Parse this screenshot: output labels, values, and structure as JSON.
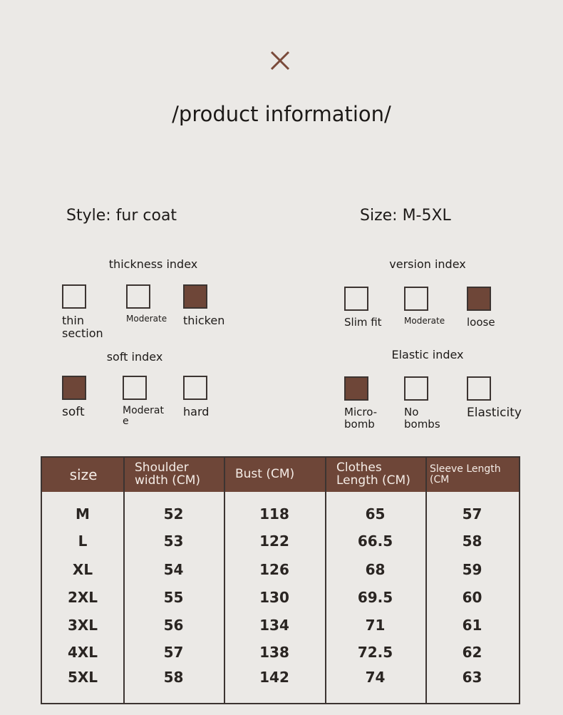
{
  "header": {
    "title": "/product information/"
  },
  "summary": {
    "style": "Style: fur coat",
    "size": "Size: M-5XL"
  },
  "indices": [
    {
      "title": "thickness index",
      "options": [
        {
          "label": "thin section",
          "checked": false
        },
        {
          "label": "Moderate",
          "checked": false
        },
        {
          "label": "thicken",
          "checked": true
        }
      ]
    },
    {
      "title": "version index",
      "options": [
        {
          "label": "Slim fit",
          "checked": false
        },
        {
          "label": "Moderate",
          "checked": false
        },
        {
          "label": "loose",
          "checked": true
        }
      ]
    },
    {
      "title": "soft index",
      "options": [
        {
          "label": "soft",
          "checked": true
        },
        {
          "label": "Moderate",
          "checked": false
        },
        {
          "label": "hard",
          "checked": false
        }
      ]
    },
    {
      "title": "Elastic index",
      "options": [
        {
          "label": "Micro-bomb",
          "checked": true
        },
        {
          "label": "No bombs",
          "checked": false
        },
        {
          "label": "Elasticity",
          "checked": false
        }
      ]
    }
  ],
  "table": {
    "header": [
      "size",
      "Shoulder width (CM)",
      "Bust (CM)",
      "Clothes Length (CM)",
      "Sleeve Length (CM"
    ],
    "rows": [
      [
        "M",
        52,
        118,
        65,
        57
      ],
      [
        "L",
        53,
        122,
        66.5,
        58
      ],
      [
        "XL",
        54,
        126,
        68,
        59
      ],
      [
        "2XL",
        55,
        130,
        69.5,
        60
      ],
      [
        "3XL",
        56,
        134,
        71,
        61
      ],
      [
        "4XL",
        57,
        138,
        72.5,
        62
      ],
      [
        "5XL",
        58,
        142,
        74,
        63
      ]
    ]
  }
}
